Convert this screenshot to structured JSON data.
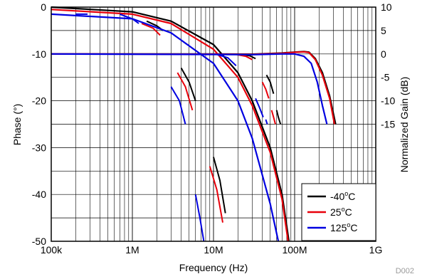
{
  "chart_data": {
    "type": "line",
    "xlabel": "Frequency (Hz)",
    "ylabel_left": "Phase (°)",
    "ylabel_right": "Normalized Gain (dB)",
    "figure_id": "D002",
    "x_scale": "log",
    "xlim": [
      100000,
      1000000000
    ],
    "x_ticks": [
      {
        "value": 100000,
        "label": "100k"
      },
      {
        "value": 1000000,
        "label": "1M"
      },
      {
        "value": 10000000,
        "label": "10M"
      },
      {
        "value": 100000000,
        "label": "100M"
      },
      {
        "value": 1000000000,
        "label": "1G"
      }
    ],
    "left_axis": {
      "ylim": [
        -50,
        0
      ],
      "ticks": [
        {
          "value": 0,
          "label": "0"
        },
        {
          "value": -10,
          "label": "-10"
        },
        {
          "value": -20,
          "label": "-20"
        },
        {
          "value": -30,
          "label": "-30"
        },
        {
          "value": -40,
          "label": "-40"
        },
        {
          "value": -50,
          "label": "-50"
        }
      ]
    },
    "right_axis": {
      "ylim": [
        -40,
        10
      ],
      "ticks": [
        {
          "value": 10,
          "label": "10"
        },
        {
          "value": 5,
          "label": "5"
        },
        {
          "value": 0,
          "label": "0"
        },
        {
          "value": -5,
          "label": "-5"
        },
        {
          "value": -10,
          "label": "-10"
        },
        {
          "value": -15,
          "label": "-15"
        }
      ]
    },
    "grid": true,
    "legend": {
      "position": "bottom-right",
      "entries": [
        {
          "label": "-40",
          "unit": "C",
          "color": "#000000"
        },
        {
          "label": "25",
          "unit": "C",
          "color": "#e8000b"
        },
        {
          "label": "125",
          "unit": "C",
          "color": "#0000e0"
        }
      ]
    },
    "series": [
      {
        "color": "#000000",
        "gain_db": [
          {
            "x": 100000,
            "y": 0
          },
          {
            "x": 10000000,
            "y": 0
          },
          {
            "x": 30000000,
            "y": -0.05
          },
          {
            "x": 70000000,
            "y": 0.2
          },
          {
            "x": 100000000,
            "y": 0.4
          },
          {
            "x": 130000000,
            "y": 0.5
          },
          {
            "x": 150000000,
            "y": 0.4
          },
          {
            "x": 180000000,
            "y": -1
          },
          {
            "x": 220000000,
            "y": -4
          },
          {
            "x": 270000000,
            "y": -9
          },
          {
            "x": 320000000,
            "y": -15
          }
        ],
        "gain_rolloff_db": [
          [
            {
              "x": 22000000,
              "y": -0.1
            },
            {
              "x": 28000000,
              "y": -0.4
            },
            {
              "x": 33000000,
              "y": -1
            }
          ],
          [
            {
              "x": 45000000,
              "y": -4.5
            },
            {
              "x": 50000000,
              "y": -6
            },
            {
              "x": 55000000,
              "y": -8.5
            }
          ],
          [
            {
              "x": 60000000,
              "y": -12
            },
            {
              "x": 63000000,
              "y": -13.5
            },
            {
              "x": 67000000,
              "y": -15
            }
          ]
        ],
        "phase_deg": [
          {
            "x": 100000,
            "y": 0
          },
          {
            "x": 1000000,
            "y": -1
          },
          {
            "x": 3000000,
            "y": -3
          },
          {
            "x": 10000000,
            "y": -8
          },
          {
            "x": 20000000,
            "y": -14
          },
          {
            "x": 30000000,
            "y": -20
          },
          {
            "x": 50000000,
            "y": -30
          },
          {
            "x": 70000000,
            "y": -40
          },
          {
            "x": 85000000,
            "y": -50
          }
        ],
        "phase_rolloff_deg": [
          [
            {
              "x": 1500000,
              "y": -3
            },
            {
              "x": 2000000,
              "y": -4
            },
            {
              "x": 2400000,
              "y": -5
            }
          ],
          [
            {
              "x": 4000000,
              "y": -13
            },
            {
              "x": 5000000,
              "y": -16
            },
            {
              "x": 6000000,
              "y": -20
            }
          ],
          [
            {
              "x": 10000000,
              "y": -32
            },
            {
              "x": 12000000,
              "y": -37
            },
            {
              "x": 14000000,
              "y": -44
            }
          ]
        ]
      },
      {
        "color": "#e8000b",
        "gain_db": [
          {
            "x": 100000,
            "y": 0
          },
          {
            "x": 10000000,
            "y": -0.05
          },
          {
            "x": 30000000,
            "y": -0.1
          },
          {
            "x": 70000000,
            "y": 0.15
          },
          {
            "x": 100000000,
            "y": 0.35
          },
          {
            "x": 130000000,
            "y": 0.45
          },
          {
            "x": 150000000,
            "y": 0.3
          },
          {
            "x": 180000000,
            "y": -1.2
          },
          {
            "x": 220000000,
            "y": -4.5
          },
          {
            "x": 270000000,
            "y": -9.5
          },
          {
            "x": 310000000,
            "y": -15
          }
        ],
        "gain_rolloff_db": [
          [
            {
              "x": 19000000,
              "y": -0.1
            },
            {
              "x": 25000000,
              "y": -0.5
            },
            {
              "x": 30000000,
              "y": -1.2
            }
          ],
          [
            {
              "x": 40000000,
              "y": -6
            },
            {
              "x": 44000000,
              "y": -7.5
            },
            {
              "x": 48000000,
              "y": -9.5
            }
          ],
          [
            {
              "x": 52000000,
              "y": -12
            },
            {
              "x": 55000000,
              "y": -13.5
            },
            {
              "x": 58000000,
              "y": -15
            }
          ]
        ],
        "phase_deg": [
          {
            "x": 100000,
            "y": -0.5
          },
          {
            "x": 1000000,
            "y": -1.5
          },
          {
            "x": 3000000,
            "y": -3.5
          },
          {
            "x": 10000000,
            "y": -9
          },
          {
            "x": 20000000,
            "y": -15
          },
          {
            "x": 30000000,
            "y": -21
          },
          {
            "x": 50000000,
            "y": -31
          },
          {
            "x": 70000000,
            "y": -41
          },
          {
            "x": 83000000,
            "y": -50
          }
        ],
        "phase_rolloff_deg": [
          [
            {
              "x": 1300000,
              "y": -3.5
            },
            {
              "x": 1800000,
              "y": -4.5
            },
            {
              "x": 2200000,
              "y": -6
            }
          ],
          [
            {
              "x": 3600000,
              "y": -14
            },
            {
              "x": 4500000,
              "y": -17
            },
            {
              "x": 5500000,
              "y": -22
            }
          ],
          [
            {
              "x": 9000000,
              "y": -34
            },
            {
              "x": 11000000,
              "y": -39
            },
            {
              "x": 13000000,
              "y": -46
            }
          ]
        ]
      },
      {
        "color": "#0000e0",
        "gain_db": [
          {
            "x": 100000,
            "y": 0
          },
          {
            "x": 10000000,
            "y": -0.1
          },
          {
            "x": 30000000,
            "y": -0.15
          },
          {
            "x": 70000000,
            "y": 0
          },
          {
            "x": 100000000,
            "y": 0
          },
          {
            "x": 130000000,
            "y": -0.5
          },
          {
            "x": 160000000,
            "y": -2
          },
          {
            "x": 190000000,
            "y": -6
          },
          {
            "x": 220000000,
            "y": -11
          },
          {
            "x": 250000000,
            "y": -15
          }
        ],
        "gain_rolloff_db": [
          [
            {
              "x": 11000000,
              "y": -0.1
            },
            {
              "x": 15000000,
              "y": -0.8
            },
            {
              "x": 19000000,
              "y": -2.5
            }
          ],
          [
            {
              "x": 33000000,
              "y": -9.5
            },
            {
              "x": 37000000,
              "y": -11.5
            },
            {
              "x": 41000000,
              "y": -13.5
            }
          ],
          [
            {
              "x": 44000000,
              "y": -14
            },
            {
              "x": 46000000,
              "y": -15
            }
          ]
        ],
        "phase_deg": [
          {
            "x": 100000,
            "y": -1.5
          },
          {
            "x": 1000000,
            "y": -2.5
          },
          {
            "x": 3000000,
            "y": -5.5
          },
          {
            "x": 10000000,
            "y": -12
          },
          {
            "x": 20000000,
            "y": -20
          },
          {
            "x": 30000000,
            "y": -28
          },
          {
            "x": 50000000,
            "y": -42
          },
          {
            "x": 63000000,
            "y": -50
          }
        ],
        "phase_rolloff_deg": [
          [
            {
              "x": 200000,
              "y": -1.5
            },
            {
              "x": 280000,
              "y": -1.5
            }
          ],
          [
            {
              "x": 700000,
              "y": -1.5
            },
            {
              "x": 1000000,
              "y": -2.5
            },
            {
              "x": 1200000,
              "y": -3.5
            }
          ],
          [
            {
              "x": 3000000,
              "y": -17
            },
            {
              "x": 3800000,
              "y": -20
            },
            {
              "x": 4500000,
              "y": -25
            }
          ],
          [
            {
              "x": 6000000,
              "y": -40
            },
            {
              "x": 6800000,
              "y": -45
            },
            {
              "x": 7600000,
              "y": -50
            }
          ]
        ]
      }
    ]
  }
}
